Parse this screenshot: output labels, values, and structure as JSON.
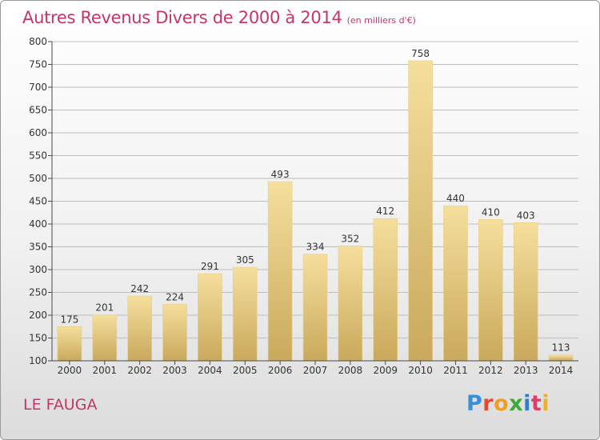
{
  "header": {
    "title": "Autres Revenus Divers de 2000 à 2014",
    "unit": "(en milliers d'€)"
  },
  "footer": {
    "location": "LE FAUGA",
    "logo": "Proxiti",
    "logo_colors": [
      "#3a8fd6",
      "#e8492b",
      "#f0a020",
      "#3fa83a",
      "#2f7fd1",
      "#e23c6a",
      "#f0b020"
    ]
  },
  "colors": {
    "bar_light": "#f5df9d",
    "bar_dark": "#c9a95c",
    "grid": "#bdbdbd",
    "axis": "#4a4a4a",
    "title": "#c4366b"
  },
  "chart_data": {
    "type": "bar",
    "title": "Autres Revenus Divers de 2000 à 2014",
    "xlabel": "",
    "ylabel": "",
    "ylim": [
      100,
      800
    ],
    "yticks": [
      100,
      150,
      200,
      250,
      300,
      350,
      400,
      450,
      500,
      550,
      600,
      650,
      700,
      750,
      800
    ],
    "grid": true,
    "categories": [
      "2000",
      "2001",
      "2002",
      "2003",
      "2004",
      "2005",
      "2006",
      "2007",
      "2008",
      "2009",
      "2010",
      "2011",
      "2012",
      "2013",
      "2014"
    ],
    "values": [
      175,
      201,
      242,
      224,
      291,
      305,
      493,
      334,
      352,
      412,
      758,
      440,
      410,
      403,
      113
    ]
  }
}
